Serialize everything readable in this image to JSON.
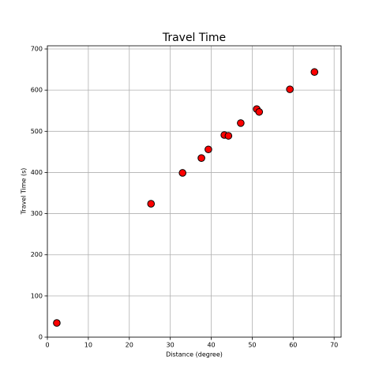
{
  "chart_data": {
    "type": "scatter",
    "title": "Travel Time",
    "x_label": "Distance (degree)",
    "y_label": "Travel Time (s)",
    "x": [
      2.3,
      25.3,
      33.0,
      37.6,
      39.3,
      43.2,
      44.2,
      47.2,
      51.1,
      51.7,
      59.2,
      65.2
    ],
    "values": [
      34.5,
      324,
      399,
      435,
      456,
      491,
      489,
      520,
      554,
      547,
      602,
      644
    ],
    "color": "#ff0000",
    "edge_color": "#000000",
    "xlim": [
      0,
      71.7
    ],
    "xticks": [
      0,
      10,
      20,
      30,
      40,
      50,
      60,
      70
    ],
    "ylim": [
      0,
      707.7
    ],
    "yticks": [
      0,
      100,
      200,
      300,
      400,
      500,
      600,
      700
    ],
    "grid": true
  }
}
